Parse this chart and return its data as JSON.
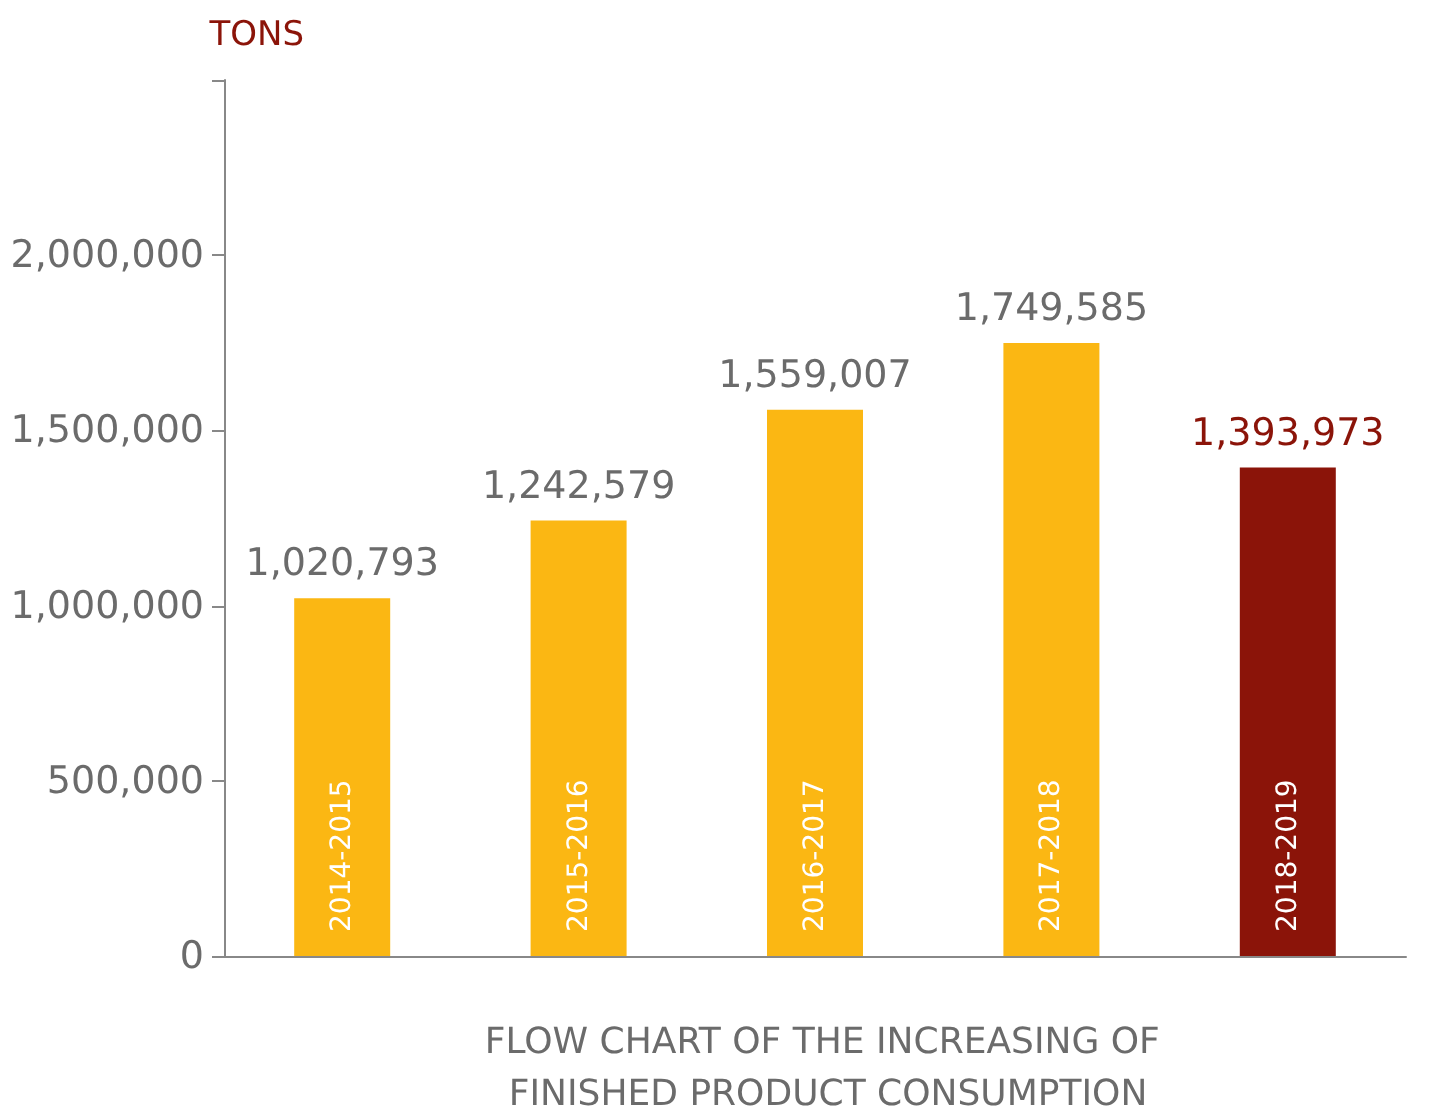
{
  "chart_data": {
    "type": "bar",
    "ylabel": "TONS",
    "xlabel": "FLOW CHART OF THE INCREASING OF FINISHED PRODUCT CONSUMPTION",
    "categories": [
      "2014-2015",
      "2015-2016",
      "2016-2017",
      "2017-2018",
      "2018-2019"
    ],
    "values": [
      1020793,
      1242579,
      1559007,
      1749585,
      1393973
    ],
    "value_labels": [
      "1,020,793",
      "1,242,579",
      "1,559,007",
      "1,749,585",
      "1,393,973"
    ],
    "colors": [
      "#fbb713",
      "#fbb713",
      "#fbb713",
      "#fbb713",
      "#8b1409"
    ],
    "ylim": [
      0,
      2500000
    ],
    "yticks": [
      0,
      {
        "value": 500000,
        "label": "500,000"
      },
      {
        "value": 1000000,
        "label": "1,000,000"
      },
      {
        "value": 1500000,
        "label": "1,500,000"
      },
      {
        "value": 2000000,
        "label": "2,000,000"
      },
      {
        "value": 2500000,
        "label": null
      }
    ],
    "grid": false
  }
}
